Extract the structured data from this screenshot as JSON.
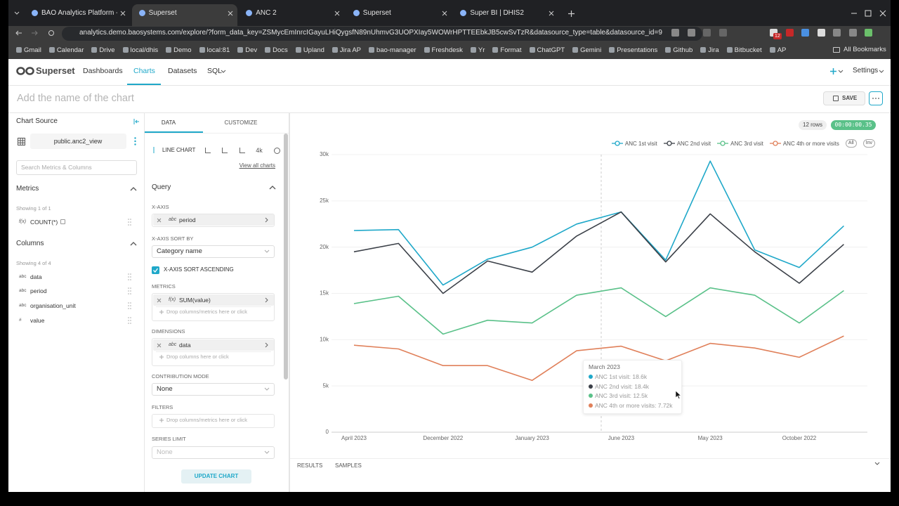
{
  "browser": {
    "tabs": [
      "BAO Analytics Platform - Al",
      "Superset",
      "ANC 2",
      "Superset",
      "Super BI | DHIS2"
    ],
    "url": "analytics.demo.baosystems.com/explore/?form_data_key=ZSMycEmInrcIGayuLHiQygsfN89nUhmvG3UOPXIay5WOWrHPTTEEbkJB5cwSvTzR&datasource_type=table&datasource_id=97",
    "extension_badge": "12",
    "bookmarks": [
      "Gmail",
      "Calendar",
      "Drive",
      "local/dhis",
      "Demo",
      "local:81",
      "Dev",
      "Docs",
      "Upland",
      "Jira AP",
      "bao-manager",
      "Freshdesk",
      "Yr",
      "Format",
      "ChatGPT",
      "Gemini",
      "Presentations",
      "Github",
      "Jira",
      "Bitbucket",
      "AP"
    ],
    "all_bookmarks": "All Bookmarks"
  },
  "app": {
    "logo": "Superset",
    "nav": [
      "Dashboards",
      "Charts",
      "Datasets",
      "SQL"
    ],
    "settings": "Settings",
    "chart_name_placeholder": "Add the name of the chart",
    "save": "SAVE"
  },
  "datasource_panel": {
    "title": "Chart Source",
    "dataset": "public.anc2_view",
    "search_placeholder": "Search Metrics & Columns",
    "metrics": {
      "title": "Metrics",
      "count": "Showing 1 of 1",
      "items": [
        {
          "type": "f(x)",
          "name": "COUNT(*)"
        }
      ]
    },
    "columns": {
      "title": "Columns",
      "count": "Showing 4 of 4",
      "items": [
        {
          "type": "abc",
          "name": "data"
        },
        {
          "type": "abc",
          "name": "period"
        },
        {
          "type": "abc",
          "name": "organisation_unit"
        },
        {
          "type": "#",
          "name": "value"
        }
      ]
    }
  },
  "control_panel": {
    "tabs": [
      "DATA",
      "CUSTOMIZE"
    ],
    "viz_type": "LINE CHART",
    "viz_4k": "4k",
    "view_all": "View all charts",
    "section": "Query",
    "x_axis": {
      "label": "X-AXIS",
      "type": "abc",
      "value": "period"
    },
    "sort_by": {
      "label": "X-AXIS SORT BY",
      "value": "Category name"
    },
    "sort_ascending": {
      "label": "X-AXIS SORT ASCENDING"
    },
    "metrics": {
      "label": "METRICS",
      "type": "f(x)",
      "value": "SUM(value)",
      "drop": "Drop columns/metrics here or click"
    },
    "dimensions": {
      "label": "DIMENSIONS",
      "type": "abc",
      "value": "data",
      "drop": "Drop columns here or click"
    },
    "contribution_mode": {
      "label": "CONTRIBUTION MODE",
      "value": "None"
    },
    "filters": {
      "label": "FILTERS",
      "drop": "Drop columns/metrics here or click"
    },
    "series_limit": {
      "label": "SERIES LIMIT",
      "value": "None"
    },
    "update": "UPDATE CHART"
  },
  "results": {
    "row_count": "12 rows",
    "timer": "00:00:00.35",
    "tabs": [
      "RESULTS",
      "SAMPLES"
    ]
  },
  "chart_data": {
    "type": "line",
    "categories": [
      "April 2023",
      null,
      "December 2022",
      null,
      "January 2023",
      null,
      "June 2023",
      null,
      "May 2023",
      null,
      "October 2022",
      null
    ],
    "series": [
      {
        "name": "ANC 1st visit",
        "color": "#1fa8c9",
        "values": [
          21800,
          21900,
          15900,
          18700,
          20000,
          22500,
          23800,
          18600,
          29300,
          19700,
          17800,
          22300
        ]
      },
      {
        "name": "ANC 2nd visit",
        "color": "#3b4048",
        "values": [
          19500,
          20400,
          15000,
          18500,
          17300,
          21200,
          23800,
          18400,
          23600,
          19500,
          16100,
          20300
        ]
      },
      {
        "name": "ANC 3rd visit",
        "color": "#5ac189",
        "values": [
          13900,
          14700,
          10600,
          12100,
          11800,
          14800,
          15600,
          12500,
          15600,
          14800,
          11800,
          15300
        ]
      },
      {
        "name": "ANC 4th or more visits",
        "color": "#e0805a",
        "values": [
          9400,
          9000,
          7200,
          7200,
          5600,
          8800,
          9300,
          7720,
          9600,
          9100,
          8100,
          10400
        ]
      }
    ],
    "ylim": [
      0,
      30000
    ],
    "yticks": [
      0,
      {
        "value": 5000,
        "label": "5k"
      },
      {
        "value": 10000,
        "label": "10k"
      },
      {
        "value": 15000,
        "label": "15k"
      },
      {
        "value": 20000,
        "label": "20k"
      },
      {
        "value": 25000,
        "label": "25k"
      },
      {
        "value": 30000,
        "label": "30k"
      }
    ],
    "grid": true,
    "legend_controls": [
      "All",
      "Inv"
    ],
    "tooltip": {
      "title": "March 2023",
      "items": [
        "ANC 1st visit: 18.6k",
        "ANC 2nd visit: 18.4k",
        "ANC 3rd visit: 12.5k",
        "ANC 4th or more visits: 7.72k"
      ]
    }
  }
}
